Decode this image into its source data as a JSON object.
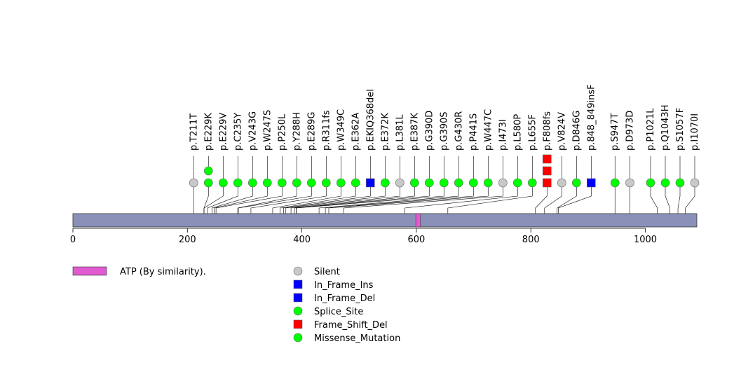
{
  "chart_data": {
    "type": "lollipop",
    "title": "",
    "xlabel": "",
    "ylabel": "",
    "protein_length": 1090,
    "x_ticks": [
      0,
      200,
      400,
      600,
      800,
      1000
    ],
    "x_tick_labels": [
      "0",
      "200",
      "400",
      "600",
      "800",
      "1000"
    ],
    "domains": [
      {
        "name": "ATP (By similarity).",
        "start": 599,
        "end": 607,
        "color": "#e05ad0"
      }
    ],
    "mutation_types": [
      {
        "name": "Silent",
        "color": "#c8c8c8",
        "shape": "circle"
      },
      {
        "name": "In_Frame_Ins",
        "color": "#0000ff",
        "shape": "square"
      },
      {
        "name": "In_Frame_Del",
        "color": "#0000ff",
        "shape": "square"
      },
      {
        "name": "Splice_Site",
        "color": "#00ff00",
        "shape": "circle"
      },
      {
        "name": "Frame_Shift_Del",
        "color": "#ff0000",
        "shape": "square"
      },
      {
        "name": "Missense_Mutation",
        "color": "#00ff00",
        "shape": "circle"
      }
    ],
    "mutations": [
      {
        "label": "p.T211T",
        "position": 211,
        "count": 1,
        "type": "Silent"
      },
      {
        "label": "p.E229K",
        "position": 229,
        "count": 2,
        "type": "Missense_Mutation"
      },
      {
        "label": "p.E229V",
        "position": 229,
        "count": 1,
        "type": "Missense_Mutation"
      },
      {
        "label": "p.C235Y",
        "position": 235,
        "count": 1,
        "type": "Missense_Mutation"
      },
      {
        "label": "p.V243G",
        "position": 243,
        "count": 1,
        "type": "Missense_Mutation"
      },
      {
        "label": "p.W247S",
        "position": 247,
        "count": 1,
        "type": "Missense_Mutation"
      },
      {
        "label": "p.P250L",
        "position": 250,
        "count": 1,
        "type": "Missense_Mutation"
      },
      {
        "label": "p.Y288H",
        "position": 288,
        "count": 1,
        "type": "Missense_Mutation"
      },
      {
        "label": "p.E289G",
        "position": 289,
        "count": 1,
        "type": "Missense_Mutation"
      },
      {
        "label": "p.R311fs",
        "position": 311,
        "count": 1,
        "type": "Missense_Mutation"
      },
      {
        "label": "p.W349C",
        "position": 349,
        "count": 1,
        "type": "Missense_Mutation"
      },
      {
        "label": "p.E362A",
        "position": 362,
        "count": 1,
        "type": "Missense_Mutation"
      },
      {
        "label": "p.EKIQ368del",
        "position": 368,
        "count": 1,
        "type": "In_Frame_Del"
      },
      {
        "label": "p.E372K",
        "position": 372,
        "count": 1,
        "type": "Missense_Mutation"
      },
      {
        "label": "p.L381L",
        "position": 381,
        "count": 1,
        "type": "Silent"
      },
      {
        "label": "p.E387K",
        "position": 387,
        "count": 1,
        "type": "Missense_Mutation"
      },
      {
        "label": "p.G390D",
        "position": 390,
        "count": 1,
        "type": "Missense_Mutation"
      },
      {
        "label": "p.G390S",
        "position": 390,
        "count": 1,
        "type": "Missense_Mutation"
      },
      {
        "label": "p.G430R",
        "position": 430,
        "count": 1,
        "type": "Missense_Mutation"
      },
      {
        "label": "p.P441S",
        "position": 441,
        "count": 1,
        "type": "Missense_Mutation"
      },
      {
        "label": "p.W447C",
        "position": 447,
        "count": 1,
        "type": "Missense_Mutation"
      },
      {
        "label": "p.I473I",
        "position": 473,
        "count": 1,
        "type": "Silent"
      },
      {
        "label": "p.L580P",
        "position": 580,
        "count": 1,
        "type": "Missense_Mutation"
      },
      {
        "label": "p.L655F",
        "position": 655,
        "count": 1,
        "type": "Missense_Mutation"
      },
      {
        "label": "p.F808fs",
        "position": 808,
        "count": 3,
        "type": "Frame_Shift_Del"
      },
      {
        "label": "p.V824V",
        "position": 824,
        "count": 1,
        "type": "Silent"
      },
      {
        "label": "p.D846G",
        "position": 846,
        "count": 1,
        "type": "Missense_Mutation"
      },
      {
        "label": "p.848_849insF",
        "position": 848,
        "count": 1,
        "type": "In_Frame_Ins"
      },
      {
        "label": "p.S947T",
        "position": 947,
        "count": 1,
        "type": "Missense_Mutation"
      },
      {
        "label": "p.D973D",
        "position": 973,
        "count": 1,
        "type": "Silent"
      },
      {
        "label": "p.P1021L",
        "position": 1021,
        "count": 1,
        "type": "Missense_Mutation"
      },
      {
        "label": "p.Q1043H",
        "position": 1043,
        "count": 1,
        "type": "Missense_Mutation"
      },
      {
        "label": "p.S1057F",
        "position": 1057,
        "count": 1,
        "type": "Missense_Mutation"
      },
      {
        "label": "p.I1070I",
        "position": 1070,
        "count": 1,
        "type": "Silent"
      }
    ],
    "legend": {
      "domain_entries": [
        "ATP (By similarity)."
      ],
      "type_entries": [
        "Silent",
        "In_Frame_Ins",
        "In_Frame_Del",
        "Splice_Site",
        "Frame_Shift_Del",
        "Missense_Mutation"
      ],
      "placement": "bottom"
    },
    "colors": {
      "protein_bar": "#8a90b8",
      "connector": "#000000",
      "marker_stroke": "#666666"
    }
  }
}
